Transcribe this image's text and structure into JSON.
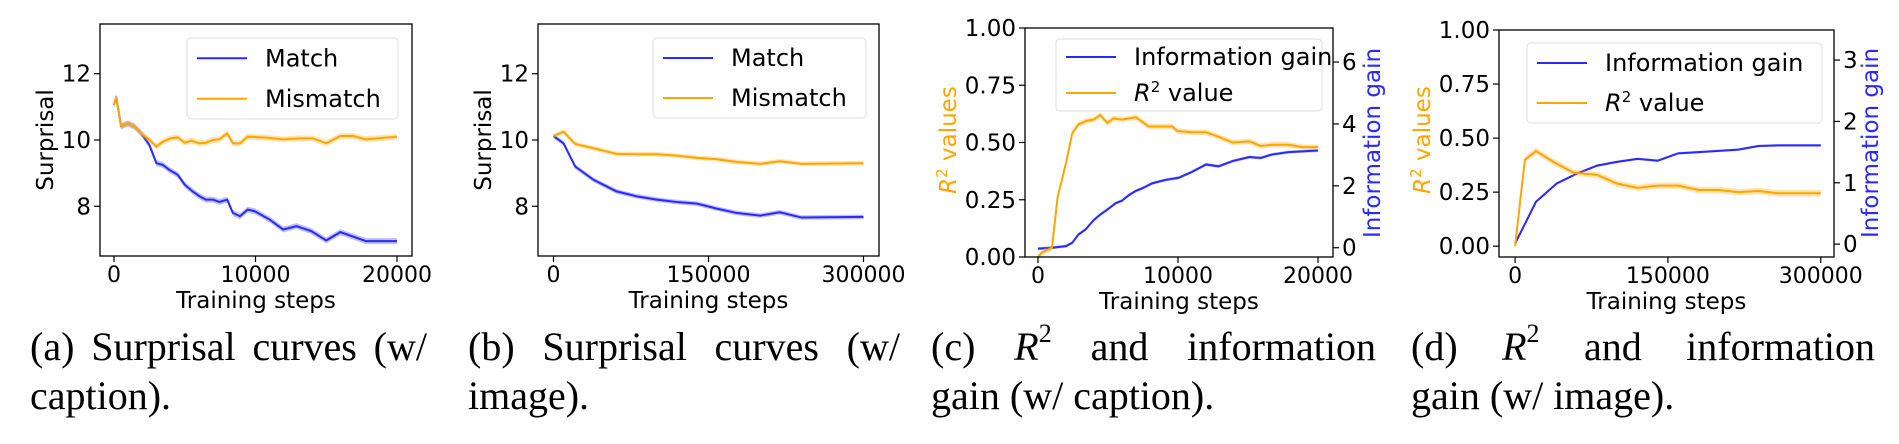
{
  "colors": {
    "blue": "#2a2aff",
    "orange": "#ffa500"
  },
  "chart_data": [
    {
      "type": "line",
      "panel": "a",
      "xlabel": "Training steps",
      "ylabel": "Surprisal",
      "xlim": [
        -990,
        21060
      ],
      "ylim": [
        6.5,
        13.5
      ],
      "xticks": [
        0,
        10000,
        20000
      ],
      "xtick_labels": [
        "0",
        "10000",
        "20000"
      ],
      "yticks": [
        8,
        10,
        12
      ],
      "ytick_labels": [
        "8",
        "10",
        "12"
      ],
      "legend": "top-right",
      "series": [
        {
          "name": "Match",
          "color": "blue",
          "x": [
            0,
            160,
            500,
            1000,
            1460,
            1930,
            2500,
            3000,
            3450,
            3900,
            4500,
            5000,
            5550,
            6050,
            6500,
            7000,
            7450,
            8000,
            8400,
            8900,
            9450,
            9950,
            11000,
            11950,
            12900,
            13950,
            15000,
            16000,
            17800,
            20000
          ],
          "y": [
            11.06,
            11.3,
            10.42,
            10.5,
            10.4,
            10.2,
            9.85,
            9.3,
            9.25,
            9.1,
            8.95,
            8.65,
            8.45,
            8.3,
            8.2,
            8.2,
            8.13,
            8.2,
            7.8,
            7.7,
            7.9,
            7.85,
            7.6,
            7.3,
            7.4,
            7.25,
            6.97,
            7.22,
            6.95,
            6.95
          ]
        },
        {
          "name": "Mismatch",
          "color": "orange",
          "x": [
            0,
            160,
            500,
            1000,
            1460,
            1930,
            2500,
            3000,
            3450,
            4000,
            4500,
            5000,
            5450,
            6050,
            6500,
            7000,
            7450,
            8000,
            8400,
            8900,
            9450,
            10750,
            11950,
            13100,
            14050,
            15000,
            16000,
            16900,
            17800,
            20000
          ],
          "y": [
            11.06,
            11.3,
            10.42,
            10.5,
            10.4,
            10.2,
            10.0,
            9.8,
            9.95,
            10.05,
            10.08,
            9.92,
            9.98,
            9.9,
            9.92,
            10.0,
            10.02,
            10.2,
            9.9,
            9.9,
            10.1,
            10.07,
            10.02,
            10.05,
            10.05,
            9.9,
            10.12,
            10.12,
            10.02,
            10.1
          ]
        }
      ]
    },
    {
      "type": "line",
      "panel": "b",
      "xlabel": "Training steps",
      "ylabel": "Surprisal",
      "xlim": [
        -15000,
        315000
      ],
      "ylim": [
        6.5,
        13.5
      ],
      "xticks": [
        0,
        150000,
        300000
      ],
      "xtick_labels": [
        "0",
        "150000",
        "300000"
      ],
      "yticks": [
        8,
        10,
        12
      ],
      "ytick_labels": [
        "8",
        "10",
        "12"
      ],
      "legend": "top-right",
      "series": [
        {
          "name": "Match",
          "color": "blue",
          "x": [
            0,
            9700,
            21000,
            38700,
            61000,
            80600,
            100000,
            119000,
            139000,
            158000,
            177000,
            200000,
            219000,
            240000,
            300000
          ],
          "y": [
            10.12,
            9.9,
            9.2,
            8.8,
            8.45,
            8.3,
            8.2,
            8.13,
            8.08,
            7.93,
            7.8,
            7.72,
            7.82,
            7.66,
            7.68
          ]
        },
        {
          "name": "Mismatch",
          "color": "orange",
          "x": [
            0,
            9700,
            21000,
            38700,
            61000,
            80600,
            100000,
            119000,
            139000,
            158000,
            177000,
            200000,
            219000,
            240000,
            300000
          ],
          "y": [
            10.12,
            10.25,
            9.88,
            9.75,
            9.58,
            9.57,
            9.57,
            9.53,
            9.46,
            9.42,
            9.34,
            9.28,
            9.36,
            9.28,
            9.3
          ]
        }
      ]
    },
    {
      "type": "line",
      "panel": "c",
      "xlabel": "Training steps",
      "ylabel_main": "R",
      "ylabel_sup": "2",
      "ylabel_rest": " values",
      "y2label": "Information gain",
      "xlim": [
        -925,
        21070
      ],
      "ylim": [
        0,
        1.0
      ],
      "y2lim": [
        -0.3,
        7.1
      ],
      "xticks": [
        0,
        10000,
        20000
      ],
      "xtick_labels": [
        "0",
        "10000",
        "20000"
      ],
      "yticks": [
        0,
        0.25,
        0.5,
        0.75,
        1.0
      ],
      "ytick_labels": [
        "0.00",
        "0.25",
        "0.50",
        "0.75",
        "1.00"
      ],
      "y2ticks": [
        0,
        2,
        4,
        6
      ],
      "y2tick_labels": [
        "0",
        "2",
        "4",
        "6"
      ],
      "legend": "top-right",
      "series": [
        {
          "name": "Information gain",
          "color": "blue",
          "axis": "right",
          "x": [
            0,
            1000,
            2000,
            2450,
            2900,
            3400,
            4000,
            4450,
            4950,
            5550,
            6000,
            6500,
            7000,
            7450,
            8150,
            9100,
            10050,
            11000,
            12000,
            12900,
            13900,
            15100,
            15900,
            16700,
            17900,
            20000
          ],
          "y": [
            -0.03,
            0,
            0.05,
            0.16,
            0.43,
            0.59,
            0.9,
            1.07,
            1.23,
            1.44,
            1.52,
            1.7,
            1.84,
            1.92,
            2.08,
            2.19,
            2.26,
            2.45,
            2.69,
            2.63,
            2.8,
            2.93,
            2.9,
            3.01,
            3.09,
            3.14
          ]
        },
        {
          "name_main": "R",
          "name_sup": "2",
          "name_rest": " value",
          "color": "orange",
          "axis": "left",
          "x": [
            0,
            300,
            1000,
            1400,
            2000,
            2450,
            2900,
            3500,
            4000,
            4450,
            4950,
            5400,
            6000,
            7000,
            7900,
            8900,
            9600,
            9950,
            11000,
            12000,
            12900,
            13900,
            15100,
            15900,
            16700,
            17900,
            18900,
            20000
          ],
          "y": [
            0.0,
            0.02,
            0.04,
            0.26,
            0.41,
            0.54,
            0.58,
            0.595,
            0.6,
            0.62,
            0.585,
            0.605,
            0.6,
            0.61,
            0.57,
            0.57,
            0.57,
            0.55,
            0.545,
            0.545,
            0.525,
            0.5,
            0.505,
            0.485,
            0.49,
            0.49,
            0.48,
            0.48
          ]
        }
      ]
    },
    {
      "type": "line",
      "panel": "d",
      "xlabel": "Training steps",
      "ylabel_main": "R",
      "ylabel_sup": "2",
      "ylabel_rest": " values",
      "y2label": "Information gain",
      "xlim": [
        -15800,
        313000
      ],
      "ylim": [
        -0.05,
        1.0
      ],
      "y2lim": [
        -0.21,
        3.49
      ],
      "xticks": [
        0,
        150000,
        300000
      ],
      "xtick_labels": [
        "0",
        "150000",
        "300000"
      ],
      "yticks": [
        0,
        0.25,
        0.5,
        0.75,
        1.0
      ],
      "ytick_labels": [
        "0.00",
        "0.25",
        "0.50",
        "0.75",
        "1.00"
      ],
      "y2ticks": [
        0,
        1,
        2,
        3
      ],
      "y2tick_labels": [
        "0",
        "1",
        "2",
        "3"
      ],
      "legend": "top-right",
      "series": [
        {
          "name": "Information gain",
          "color": "blue",
          "axis": "right",
          "x": [
            0,
            20500,
            41000,
            60700,
            80500,
            100000,
            120000,
            140000,
            160000,
            180000,
            200000,
            219000,
            239000,
            258000,
            300000
          ],
          "y": [
            0.01,
            0.69,
            0.99,
            1.15,
            1.28,
            1.34,
            1.39,
            1.36,
            1.48,
            1.5,
            1.52,
            1.54,
            1.6,
            1.61,
            1.61
          ]
        },
        {
          "name_main": "R",
          "name_sup": "2",
          "name_rest": " value",
          "color": "orange",
          "axis": "left",
          "x": [
            0,
            9600,
            20500,
            37600,
            57400,
            80500,
            100000,
            120000,
            140000,
            160000,
            180000,
            200000,
            219000,
            239000,
            258000,
            300000
          ],
          "y": [
            0.0,
            0.4,
            0.44,
            0.39,
            0.34,
            0.33,
            0.29,
            0.27,
            0.28,
            0.28,
            0.26,
            0.26,
            0.25,
            0.255,
            0.245,
            0.245
          ]
        }
      ]
    }
  ],
  "captions": [
    {
      "line1": "(a) Surprisal curves (w/",
      "line2": "caption)."
    },
    {
      "line1": "(b) Surprisal curves (w/",
      "line2": "image)."
    },
    {
      "label": "(c)",
      "math": "R",
      "sup": "2",
      "line1_rest": "and information",
      "line2": "gain (w/ caption)."
    },
    {
      "label": "(d)",
      "math": "R",
      "sup": "2",
      "line1_rest": "and information",
      "line2": "gain (w/ image)."
    }
  ]
}
